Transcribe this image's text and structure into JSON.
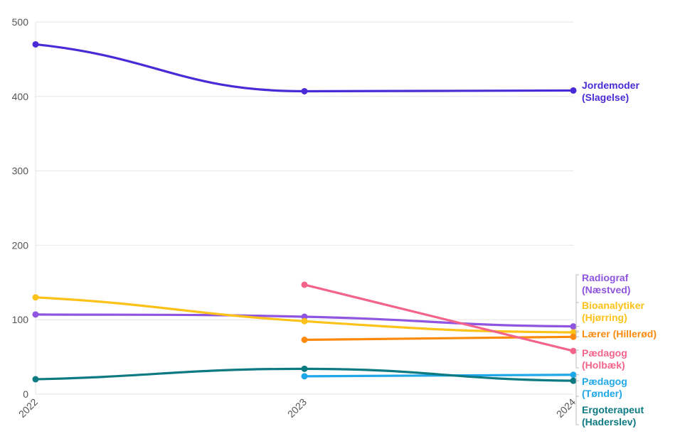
{
  "chart_data": {
    "type": "line",
    "x": [
      "2022",
      "2023",
      "2024"
    ],
    "ylim": [
      0,
      500
    ],
    "yticks": [
      0,
      100,
      200,
      300,
      400,
      500
    ],
    "grid": true,
    "legend": "direct labels at right end",
    "series": [
      {
        "name": "Jordemoder (Slagelse)",
        "label_lines": [
          "Jordemoder",
          "(Slagelse)"
        ],
        "color": "#4a2ad6",
        "values": [
          470,
          407,
          408
        ]
      },
      {
        "name": "Radiograf (Næstved)",
        "label_lines": [
          "Radiograf",
          "(Næstved)"
        ],
        "color": "#8f55e0",
        "values": [
          107,
          104,
          91
        ]
      },
      {
        "name": "Bioanalytiker (Hjørring)",
        "label_lines": [
          "Bioanalytiker",
          "(Hjørring)"
        ],
        "color": "#fcc21a",
        "values": [
          130,
          98,
          83
        ]
      },
      {
        "name": "Lærer (Hillerød)",
        "label_lines": [
          "Lærer (Hillerød)"
        ],
        "color": "#fb8a0f",
        "values": [
          null,
          73,
          77
        ]
      },
      {
        "name": "Pædagog (Holbæk)",
        "label_lines": [
          "Pædagog",
          "(Holbæk)"
        ],
        "color": "#f4648a",
        "values": [
          null,
          147,
          58
        ]
      },
      {
        "name": "Pædagog (Tønder)",
        "label_lines": [
          "Pædagog",
          "(Tønder)"
        ],
        "color": "#20a7e8",
        "values": [
          null,
          24,
          26
        ]
      },
      {
        "name": "Ergoterapeut (Haderslev)",
        "label_lines": [
          "Ergoterapeut",
          "(Haderslev)"
        ],
        "color": "#0d7a82",
        "values": [
          20,
          34,
          18
        ]
      }
    ]
  }
}
